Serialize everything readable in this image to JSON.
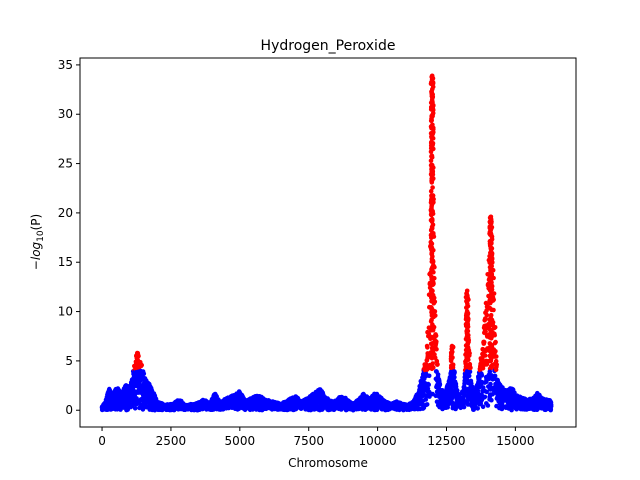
{
  "chart_data": {
    "type": "scatter",
    "title": "Hydrogen_Peroxide",
    "xlabel": "Chromosome",
    "ylabel_prefix": "−",
    "ylabel_var": "log",
    "ylabel_sub": "10",
    "ylabel_suffix": "(P)",
    "xlim": [
      -800,
      17200
    ],
    "ylim": [
      -1.7,
      35.7
    ],
    "x_ticks": [
      0,
      2500,
      5000,
      7500,
      10000,
      12500,
      15000
    ],
    "x_tick_labels": [
      "0",
      "2500",
      "5000",
      "7500",
      "10000",
      "12500",
      "15000"
    ],
    "y_ticks": [
      0,
      5,
      10,
      15,
      20,
      25,
      30,
      35
    ],
    "y_tick_labels": [
      "0",
      "5",
      "10",
      "15",
      "20",
      "25",
      "30",
      "35"
    ],
    "grid": false,
    "threshold": 4.0,
    "colors": {
      "significant": "#ff0000",
      "normal": "#0000ff"
    },
    "profile": [
      [
        0,
        0.3
      ],
      [
        150,
        1.0
      ],
      [
        250,
        2.0
      ],
      [
        400,
        1.5
      ],
      [
        550,
        2.2
      ],
      [
        700,
        1.4
      ],
      [
        850,
        2.5
      ],
      [
        1000,
        2.0
      ],
      [
        1100,
        3.2
      ],
      [
        1200,
        4.5
      ],
      [
        1280,
        5.4
      ],
      [
        1350,
        4.6
      ],
      [
        1450,
        4.2
      ],
      [
        1550,
        3.0
      ],
      [
        1700,
        2.5
      ],
      [
        1850,
        1.8
      ],
      [
        2000,
        0.8
      ],
      [
        2300,
        0.5
      ],
      [
        2600,
        0.6
      ],
      [
        2800,
        1.1
      ],
      [
        3000,
        0.5
      ],
      [
        3400,
        0.6
      ],
      [
        3700,
        1.0
      ],
      [
        3900,
        0.6
      ],
      [
        4100,
        1.6
      ],
      [
        4300,
        0.8
      ],
      [
        4600,
        1.2
      ],
      [
        4850,
        1.5
      ],
      [
        5000,
        1.8
      ],
      [
        5200,
        0.9
      ],
      [
        5500,
        1.3
      ],
      [
        5700,
        1.4
      ],
      [
        5900,
        1.0
      ],
      [
        6200,
        0.8
      ],
      [
        6500,
        0.6
      ],
      [
        6800,
        1.0
      ],
      [
        7000,
        1.5
      ],
      [
        7200,
        0.8
      ],
      [
        7500,
        1.2
      ],
      [
        7700,
        1.6
      ],
      [
        7900,
        2.1
      ],
      [
        8100,
        1.2
      ],
      [
        8400,
        0.8
      ],
      [
        8700,
        1.4
      ],
      [
        8900,
        1.0
      ],
      [
        9100,
        0.6
      ],
      [
        9300,
        1.0
      ],
      [
        9500,
        1.6
      ],
      [
        9700,
        1.0
      ],
      [
        9900,
        1.7
      ],
      [
        10100,
        1.2
      ],
      [
        10300,
        0.8
      ],
      [
        10500,
        0.6
      ],
      [
        10700,
        0.8
      ],
      [
        10900,
        0.6
      ],
      [
        11100,
        0.5
      ],
      [
        11300,
        0.8
      ],
      [
        11450,
        1.6
      ],
      [
        11600,
        3.0
      ],
      [
        11700,
        4.0
      ],
      [
        11780,
        6.0
      ],
      [
        11850,
        9.0
      ],
      [
        11900,
        14.0
      ],
      [
        11940,
        20.0
      ],
      [
        11980,
        25.0
      ],
      [
        12000,
        28.0
      ],
      [
        12030,
        22.0
      ],
      [
        12060,
        15.0
      ],
      [
        12100,
        8.0
      ],
      [
        12200,
        3.5
      ],
      [
        12300,
        2.0
      ],
      [
        12450,
        1.5
      ],
      [
        12550,
        2.5
      ],
      [
        12700,
        4.2
      ],
      [
        12750,
        4.5
      ],
      [
        12850,
        2.4
      ],
      [
        13000,
        1.0
      ],
      [
        13150,
        2.5
      ],
      [
        13250,
        9.5
      ],
      [
        13300,
        7.0
      ],
      [
        13400,
        2.5
      ],
      [
        13500,
        1.5
      ],
      [
        13650,
        3.0
      ],
      [
        13750,
        5.0
      ],
      [
        13850,
        7.5
      ],
      [
        13950,
        11.0
      ],
      [
        14050,
        15.5
      ],
      [
        14120,
        17.5
      ],
      [
        14200,
        15.0
      ],
      [
        14280,
        7.0
      ],
      [
        14350,
        3.0
      ],
      [
        14500,
        2.2
      ],
      [
        14700,
        1.8
      ],
      [
        14900,
        2.2
      ],
      [
        15000,
        1.5
      ],
      [
        15200,
        1.2
      ],
      [
        15400,
        1.0
      ],
      [
        15600,
        1.1
      ],
      [
        15800,
        1.6
      ],
      [
        15950,
        1.2
      ],
      [
        16100,
        1.0
      ],
      [
        16300,
        0.9
      ]
    ],
    "peaks": [
      {
        "x": 11980,
        "max": 33.9
      },
      {
        "x": 14110,
        "max": 19.6
      },
      {
        "x": 13250,
        "max": 12.1
      },
      {
        "x": 12700,
        "max": 6.5
      },
      {
        "x": 1280,
        "max": 5.8
      }
    ],
    "n_points": 4500,
    "seed": 7
  }
}
